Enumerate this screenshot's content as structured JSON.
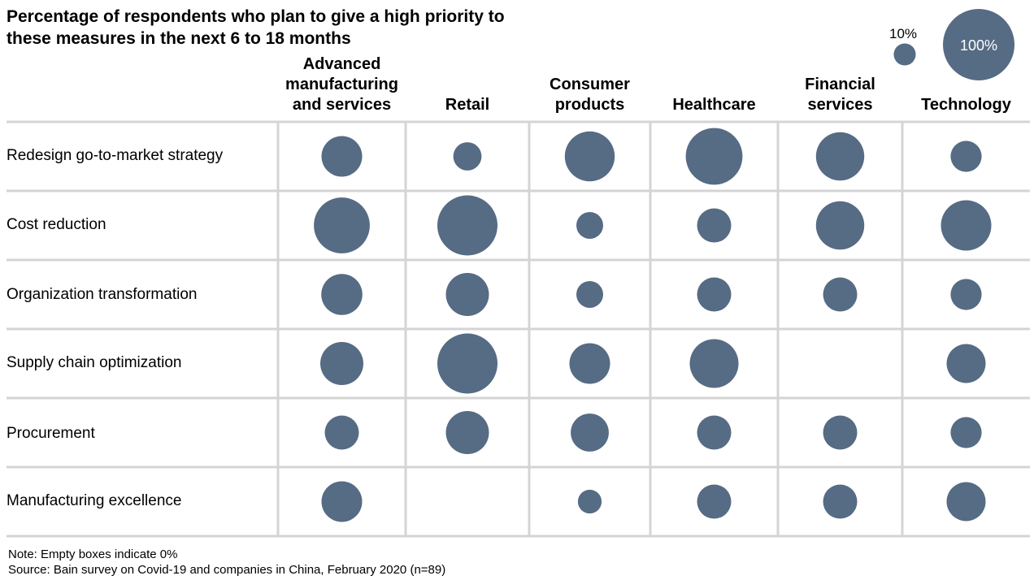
{
  "chart_data": {
    "type": "bubble-matrix",
    "title": "Percentage of respondents who plan to give a high priority to these measures in the next 6 to 18 months",
    "columns": [
      "Advanced manufacturing and services",
      "Retail",
      "Consumer products",
      "Healthcare",
      "Financial services",
      "Technology"
    ],
    "rows": [
      {
        "label": "Redesign go-to-market strategy",
        "values": [
          41,
          20,
          62,
          80,
          58,
          24
        ]
      },
      {
        "label": "Cost reduction",
        "values": [
          78,
          90,
          18,
          29,
          58,
          63
        ]
      },
      {
        "label": "Organization transformation",
        "values": [
          42,
          46,
          18,
          29,
          29,
          24
        ]
      },
      {
        "label": "Supply chain optimization",
        "values": [
          46,
          90,
          41,
          59,
          0,
          38
        ]
      },
      {
        "label": "Procurement",
        "values": [
          29,
          46,
          36,
          29,
          29,
          24
        ]
      },
      {
        "label": "Manufacturing excellence",
        "values": [
          41,
          0,
          14,
          29,
          29,
          38
        ]
      }
    ],
    "size_legend": [
      {
        "label": "10%",
        "value": 10
      },
      {
        "label": "100%",
        "value": 100
      }
    ],
    "bubble_color": "#566b84",
    "grid_color": "#d4d4d4"
  },
  "footer": {
    "note": "Note: Empty boxes indicate 0%",
    "source": "Source: Bain survey on Covid-19 and companies in China, February 2020 (n=89)"
  }
}
